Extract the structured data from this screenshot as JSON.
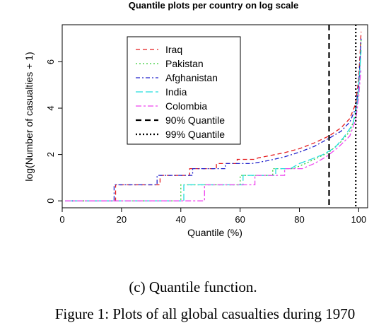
{
  "chart_data": {
    "type": "line",
    "title": "Quantile plots per country on log scale",
    "xlabel": "Quantile (%)",
    "ylabel": "log(Number of casualties + 1)",
    "xlim": [
      0,
      103
    ],
    "ylim": [
      -0.3,
      7.6
    ],
    "xticks": [
      0,
      20,
      40,
      60,
      80,
      100
    ],
    "yticks": [
      0,
      2,
      4,
      6
    ],
    "grid": false,
    "legend_position": "top-left",
    "series": [
      {
        "name": "Iraq",
        "color": "#e41a1c",
        "dash": "dashed",
        "points": [
          [
            1,
            0
          ],
          [
            18,
            0
          ],
          [
            18,
            0.69
          ],
          [
            33,
            0.69
          ],
          [
            33,
            1.1
          ],
          [
            43,
            1.1
          ],
          [
            43,
            1.39
          ],
          [
            52,
            1.39
          ],
          [
            52,
            1.61
          ],
          [
            59,
            1.61
          ],
          [
            59,
            1.79
          ],
          [
            65,
            1.79
          ],
          [
            66,
            1.85
          ],
          [
            70,
            1.95
          ],
          [
            75,
            2.08
          ],
          [
            80,
            2.25
          ],
          [
            85,
            2.5
          ],
          [
            90,
            2.8
          ],
          [
            94,
            3.15
          ],
          [
            97,
            3.55
          ],
          [
            99,
            4.2
          ],
          [
            100,
            5.3
          ],
          [
            100.5,
            6.5
          ],
          [
            100.8,
            7.3
          ]
        ]
      },
      {
        "name": "Pakistan",
        "color": "#33cc33",
        "dash": "dotted",
        "points": [
          [
            1,
            0
          ],
          [
            40,
            0
          ],
          [
            40,
            0.69
          ],
          [
            60,
            0.69
          ],
          [
            60,
            1.1
          ],
          [
            71,
            1.1
          ],
          [
            71,
            1.39
          ],
          [
            78,
            1.39
          ],
          [
            82,
            1.61
          ],
          [
            86,
            1.85
          ],
          [
            90,
            2.1
          ],
          [
            94,
            2.55
          ],
          [
            97,
            3.0
          ],
          [
            99,
            3.7
          ],
          [
            100,
            4.8
          ],
          [
            100.5,
            6.0
          ],
          [
            100.8,
            7.0
          ]
        ]
      },
      {
        "name": "Afghanistan",
        "color": "#2222cc",
        "dash": "dashdot",
        "points": [
          [
            1,
            0
          ],
          [
            17.5,
            0
          ],
          [
            17.5,
            0.69
          ],
          [
            32,
            0.69
          ],
          [
            32,
            1.1
          ],
          [
            44,
            1.1
          ],
          [
            44,
            1.39
          ],
          [
            55,
            1.39
          ],
          [
            55,
            1.61
          ],
          [
            64,
            1.61
          ],
          [
            70,
            1.75
          ],
          [
            75,
            1.9
          ],
          [
            80,
            2.1
          ],
          [
            85,
            2.35
          ],
          [
            90,
            2.7
          ],
          [
            94,
            3.0
          ],
          [
            97,
            3.4
          ],
          [
            99,
            4.0
          ],
          [
            100,
            5.0
          ],
          [
            100.5,
            6.2
          ],
          [
            100.8,
            7.0
          ]
        ]
      },
      {
        "name": "India",
        "color": "#22dddd",
        "dash": "longdash",
        "points": [
          [
            1,
            0
          ],
          [
            41,
            0
          ],
          [
            41,
            0.69
          ],
          [
            61,
            0.69
          ],
          [
            61,
            1.1
          ],
          [
            72,
            1.1
          ],
          [
            72,
            1.39
          ],
          [
            77,
            1.39
          ],
          [
            80,
            1.61
          ],
          [
            84,
            1.8
          ],
          [
            88,
            2.0
          ],
          [
            92,
            2.3
          ],
          [
            95,
            2.75
          ],
          [
            98,
            3.3
          ],
          [
            99.5,
            4.2
          ],
          [
            100.3,
            5.5
          ],
          [
            100.8,
            6.5
          ]
        ]
      },
      {
        "name": "Colombia",
        "color": "#ee44ee",
        "dash": "twodash",
        "points": [
          [
            1,
            0
          ],
          [
            48,
            0
          ],
          [
            48,
            0.69
          ],
          [
            65,
            0.69
          ],
          [
            65,
            1.1
          ],
          [
            75,
            1.1
          ],
          [
            75,
            1.39
          ],
          [
            81,
            1.39
          ],
          [
            85,
            1.61
          ],
          [
            89,
            1.9
          ],
          [
            93,
            2.3
          ],
          [
            97,
            2.8
          ],
          [
            99,
            3.5
          ],
          [
            100,
            4.5
          ],
          [
            100.5,
            5.3
          ],
          [
            100.8,
            5.7
          ]
        ]
      }
    ],
    "reference_lines": [
      {
        "name": "90% Quantile",
        "x": 90,
        "color": "#000000",
        "dash": "dashed"
      },
      {
        "name": "99% Quantile",
        "x": 99,
        "color": "#000000",
        "dash": "dotted"
      }
    ]
  },
  "caption": "(c) Quantile function.",
  "figure_line": "Figure 1: Plots of all global casualties during 1970"
}
